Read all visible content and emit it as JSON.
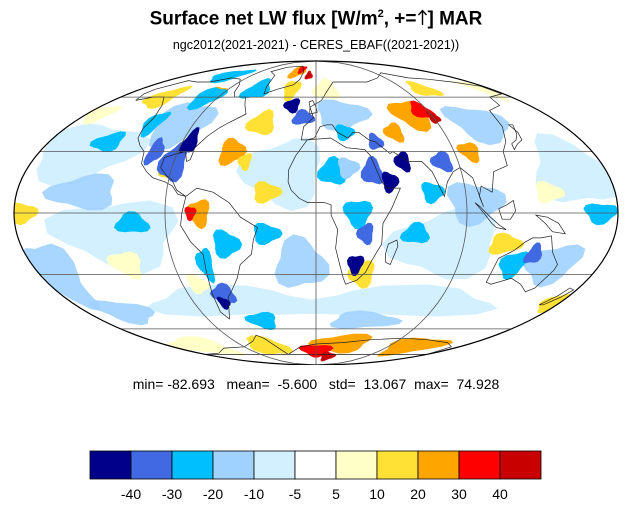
{
  "title": {
    "main": "Surface net LW flux [W/m",
    "sup": "2",
    "mid": ", +=",
    "arrow_icon": "up-arrow-icon",
    "end": "]  MAR"
  },
  "subtitle": "ngc2012(2021-2021) - CERES_EBAF((2021-2021))",
  "stats": {
    "min_label": "min=",
    "min": "-82.693",
    "mean_label": "mean=",
    "mean": "-5.600",
    "std_label": "std=",
    "std": "13.067",
    "max_label": "max=",
    "max": "74.928"
  },
  "colorbar": {
    "colors": [
      "#00008b",
      "#4169e1",
      "#00bfff",
      "#a0d2ff",
      "#d2f0ff",
      "#ffffff",
      "#ffffc8",
      "#ffe135",
      "#ffa500",
      "#ff0000",
      "#c80000"
    ],
    "boundaries": [
      "-40",
      "-30",
      "-20",
      "-10",
      "-5",
      "5",
      "10",
      "20",
      "30",
      "40"
    ]
  },
  "map": {
    "projection": "mollweide",
    "grid": true,
    "background_color": "#ffffff"
  }
}
